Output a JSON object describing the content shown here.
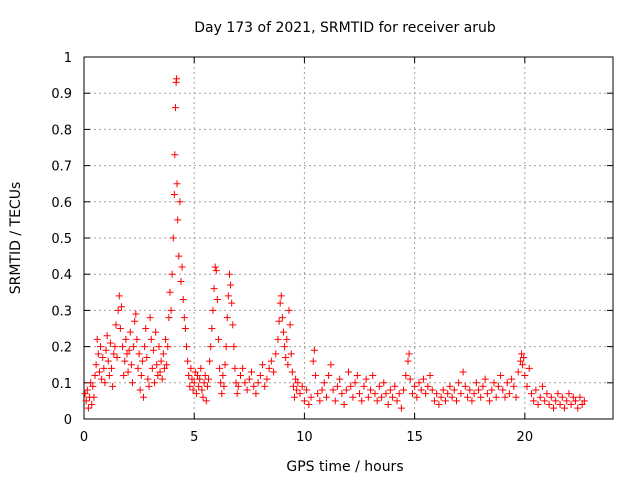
{
  "chart_data": {
    "type": "scatter",
    "title": "Day 173 of 2021, SRMTID for receiver arub",
    "xlabel": "GPS time / hours",
    "ylabel": "SRMTID / TECUs",
    "xlim": [
      0,
      24
    ],
    "ylim": [
      0,
      1
    ],
    "xticks": [
      0,
      5,
      10,
      15,
      20
    ],
    "xtick_labels": [
      "0",
      "5",
      "10",
      "15",
      "20"
    ],
    "yticks": [
      0,
      0.1,
      0.2,
      0.3,
      0.4,
      0.5,
      0.6,
      0.7,
      0.8,
      0.9,
      1
    ],
    "ytick_labels": [
      "0",
      "0.1",
      "0.2",
      "0.3",
      "0.4",
      "0.5",
      "0.6",
      "0.7",
      "0.8",
      "0.9",
      "1"
    ],
    "grid": true,
    "marker": "+",
    "color": "#ff0000",
    "series": [
      {
        "name": "SRMTID",
        "points": [
          [
            0.05,
            0.07
          ],
          [
            0.1,
            0.05
          ],
          [
            0.15,
            0.08
          ],
          [
            0.2,
            0.03
          ],
          [
            0.25,
            0.06
          ],
          [
            0.3,
            0.1
          ],
          [
            0.35,
            0.04
          ],
          [
            0.4,
            0.09
          ],
          [
            0.45,
            0.06
          ],
          [
            0.5,
            0.12
          ],
          [
            0.55,
            0.15
          ],
          [
            0.6,
            0.22
          ],
          [
            0.65,
            0.18
          ],
          [
            0.7,
            0.13
          ],
          [
            0.75,
            0.2
          ],
          [
            0.8,
            0.11
          ],
          [
            0.85,
            0.17
          ],
          [
            0.9,
            0.14
          ],
          [
            0.95,
            0.1
          ],
          [
            1.0,
            0.19
          ],
          [
            1.05,
            0.23
          ],
          [
            1.1,
            0.16
          ],
          [
            1.15,
            0.12
          ],
          [
            1.2,
            0.21
          ],
          [
            1.25,
            0.14
          ],
          [
            1.3,
            0.09
          ],
          [
            1.35,
            0.18
          ],
          [
            1.4,
            0.2
          ],
          [
            1.45,
            0.26
          ],
          [
            1.5,
            0.17
          ],
          [
            1.55,
            0.3
          ],
          [
            1.6,
            0.34
          ],
          [
            1.65,
            0.25
          ],
          [
            1.7,
            0.31
          ],
          [
            1.75,
            0.2
          ],
          [
            1.8,
            0.12
          ],
          [
            1.85,
            0.16
          ],
          [
            1.9,
            0.22
          ],
          [
            1.95,
            0.18
          ],
          [
            2.0,
            0.13
          ],
          [
            2.05,
            0.19
          ],
          [
            2.1,
            0.24
          ],
          [
            2.15,
            0.15
          ],
          [
            2.2,
            0.1
          ],
          [
            2.25,
            0.2
          ],
          [
            2.3,
            0.27
          ],
          [
            2.35,
            0.29
          ],
          [
            2.4,
            0.22
          ],
          [
            2.45,
            0.14
          ],
          [
            2.5,
            0.18
          ],
          [
            2.55,
            0.08
          ],
          [
            2.6,
            0.12
          ],
          [
            2.65,
            0.16
          ],
          [
            2.7,
            0.06
          ],
          [
            2.75,
            0.2
          ],
          [
            2.8,
            0.25
          ],
          [
            2.85,
            0.17
          ],
          [
            2.9,
            0.11
          ],
          [
            2.95,
            0.09
          ],
          [
            3.0,
            0.28
          ],
          [
            3.05,
            0.22
          ],
          [
            3.1,
            0.14
          ],
          [
            3.15,
            0.19
          ],
          [
            3.2,
            0.1
          ],
          [
            3.25,
            0.24
          ],
          [
            3.3,
            0.15
          ],
          [
            3.35,
            0.12
          ],
          [
            3.4,
            0.2
          ],
          [
            3.45,
            0.13
          ],
          [
            3.5,
            0.16
          ],
          [
            3.55,
            0.11
          ],
          [
            3.6,
            0.18
          ],
          [
            3.65,
            0.14
          ],
          [
            3.7,
            0.22
          ],
          [
            3.75,
            0.15
          ],
          [
            3.8,
            0.2
          ],
          [
            3.85,
            0.28
          ],
          [
            3.9,
            0.35
          ],
          [
            3.95,
            0.3
          ],
          [
            4.0,
            0.4
          ],
          [
            4.05,
            0.5
          ],
          [
            4.1,
            0.62
          ],
          [
            4.12,
            0.73
          ],
          [
            4.15,
            0.86
          ],
          [
            4.18,
            0.93
          ],
          [
            4.2,
            0.94
          ],
          [
            4.22,
            0.65
          ],
          [
            4.25,
            0.55
          ],
          [
            4.3,
            0.45
          ],
          [
            4.35,
            0.6
          ],
          [
            4.4,
            0.38
          ],
          [
            4.45,
            0.42
          ],
          [
            4.5,
            0.33
          ],
          [
            4.55,
            0.28
          ],
          [
            4.6,
            0.25
          ],
          [
            4.65,
            0.2
          ],
          [
            4.7,
            0.16
          ],
          [
            4.75,
            0.12
          ],
          [
            4.8,
            0.09
          ],
          [
            4.85,
            0.14
          ],
          [
            4.9,
            0.11
          ],
          [
            4.95,
            0.08
          ],
          [
            5.0,
            0.1
          ],
          [
            5.05,
            0.13
          ],
          [
            5.1,
            0.07
          ],
          [
            5.15,
            0.12
          ],
          [
            5.2,
            0.09
          ],
          [
            5.25,
            0.11
          ],
          [
            5.3,
            0.14
          ],
          [
            5.35,
            0.08
          ],
          [
            5.4,
            0.06
          ],
          [
            5.45,
            0.1
          ],
          [
            5.5,
            0.12
          ],
          [
            5.55,
            0.05
          ],
          [
            5.6,
            0.09
          ],
          [
            5.65,
            0.11
          ],
          [
            5.7,
            0.16
          ],
          [
            5.75,
            0.2
          ],
          [
            5.8,
            0.25
          ],
          [
            5.85,
            0.3
          ],
          [
            5.9,
            0.36
          ],
          [
            5.95,
            0.42
          ],
          [
            6.0,
            0.41
          ],
          [
            6.05,
            0.33
          ],
          [
            6.1,
            0.22
          ],
          [
            6.15,
            0.14
          ],
          [
            6.2,
            0.1
          ],
          [
            6.25,
            0.07
          ],
          [
            6.3,
            0.12
          ],
          [
            6.35,
            0.09
          ],
          [
            6.4,
            0.15
          ],
          [
            6.45,
            0.2
          ],
          [
            6.5,
            0.28
          ],
          [
            6.55,
            0.34
          ],
          [
            6.6,
            0.4
          ],
          [
            6.65,
            0.37
          ],
          [
            6.7,
            0.32
          ],
          [
            6.75,
            0.26
          ],
          [
            6.8,
            0.2
          ],
          [
            6.85,
            0.14
          ],
          [
            6.9,
            0.1
          ],
          [
            6.95,
            0.07
          ],
          [
            7.0,
            0.09
          ],
          [
            7.1,
            0.12
          ],
          [
            7.2,
            0.14
          ],
          [
            7.3,
            0.1
          ],
          [
            7.4,
            0.08
          ],
          [
            7.5,
            0.11
          ],
          [
            7.6,
            0.13
          ],
          [
            7.7,
            0.09
          ],
          [
            7.8,
            0.07
          ],
          [
            7.9,
            0.1
          ],
          [
            8.0,
            0.12
          ],
          [
            8.1,
            0.15
          ],
          [
            8.2,
            0.09
          ],
          [
            8.3,
            0.11
          ],
          [
            8.4,
            0.14
          ],
          [
            8.5,
            0.16
          ],
          [
            8.6,
            0.13
          ],
          [
            8.7,
            0.18
          ],
          [
            8.8,
            0.22
          ],
          [
            8.85,
            0.27
          ],
          [
            8.9,
            0.32
          ],
          [
            8.95,
            0.34
          ],
          [
            9.0,
            0.28
          ],
          [
            9.05,
            0.24
          ],
          [
            9.1,
            0.2
          ],
          [
            9.15,
            0.17
          ],
          [
            9.2,
            0.22
          ],
          [
            9.25,
            0.15
          ],
          [
            9.3,
            0.3
          ],
          [
            9.35,
            0.26
          ],
          [
            9.4,
            0.18
          ],
          [
            9.45,
            0.13
          ],
          [
            9.5,
            0.09
          ],
          [
            9.55,
            0.06
          ],
          [
            9.6,
            0.11
          ],
          [
            9.65,
            0.08
          ],
          [
            9.7,
            0.1
          ],
          [
            9.8,
            0.07
          ],
          [
            9.9,
            0.09
          ],
          [
            10.0,
            0.05
          ],
          [
            10.1,
            0.08
          ],
          [
            10.2,
            0.04
          ],
          [
            10.3,
            0.06
          ],
          [
            10.4,
            0.16
          ],
          [
            10.45,
            0.19
          ],
          [
            10.5,
            0.12
          ],
          [
            10.6,
            0.07
          ],
          [
            10.7,
            0.05
          ],
          [
            10.8,
            0.08
          ],
          [
            10.9,
            0.1
          ],
          [
            11.0,
            0.06
          ],
          [
            11.1,
            0.12
          ],
          [
            11.2,
            0.15
          ],
          [
            11.3,
            0.08
          ],
          [
            11.4,
            0.05
          ],
          [
            11.5,
            0.09
          ],
          [
            11.6,
            0.11
          ],
          [
            11.7,
            0.07
          ],
          [
            11.8,
            0.04
          ],
          [
            11.9,
            0.08
          ],
          [
            12.0,
            0.13
          ],
          [
            12.1,
            0.09
          ],
          [
            12.2,
            0.06
          ],
          [
            12.3,
            0.1
          ],
          [
            12.4,
            0.12
          ],
          [
            12.5,
            0.07
          ],
          [
            12.6,
            0.05
          ],
          [
            12.7,
            0.09
          ],
          [
            12.8,
            0.11
          ],
          [
            12.9,
            0.06
          ],
          [
            13.0,
            0.08
          ],
          [
            13.1,
            0.12
          ],
          [
            13.2,
            0.07
          ],
          [
            13.3,
            0.05
          ],
          [
            13.4,
            0.09
          ],
          [
            13.5,
            0.06
          ],
          [
            13.6,
            0.1
          ],
          [
            13.7,
            0.07
          ],
          [
            13.8,
            0.04
          ],
          [
            13.9,
            0.08
          ],
          [
            14.0,
            0.06
          ],
          [
            14.1,
            0.09
          ],
          [
            14.2,
            0.05
          ],
          [
            14.3,
            0.07
          ],
          [
            14.4,
            0.03
          ],
          [
            14.5,
            0.08
          ],
          [
            14.6,
            0.12
          ],
          [
            14.7,
            0.16
          ],
          [
            14.75,
            0.18
          ],
          [
            14.8,
            0.11
          ],
          [
            14.9,
            0.07
          ],
          [
            15.0,
            0.09
          ],
          [
            15.1,
            0.06
          ],
          [
            15.2,
            0.1
          ],
          [
            15.3,
            0.08
          ],
          [
            15.4,
            0.11
          ],
          [
            15.5,
            0.07
          ],
          [
            15.6,
            0.09
          ],
          [
            15.7,
            0.12
          ],
          [
            15.8,
            0.08
          ],
          [
            15.9,
            0.05
          ],
          [
            16.0,
            0.07
          ],
          [
            16.1,
            0.04
          ],
          [
            16.2,
            0.06
          ],
          [
            16.3,
            0.08
          ],
          [
            16.4,
            0.05
          ],
          [
            16.5,
            0.07
          ],
          [
            16.6,
            0.09
          ],
          [
            16.7,
            0.06
          ],
          [
            16.8,
            0.08
          ],
          [
            16.9,
            0.05
          ],
          [
            17.0,
            0.1
          ],
          [
            17.1,
            0.07
          ],
          [
            17.2,
            0.13
          ],
          [
            17.3,
            0.09
          ],
          [
            17.4,
            0.06
          ],
          [
            17.5,
            0.08
          ],
          [
            17.6,
            0.05
          ],
          [
            17.7,
            0.07
          ],
          [
            17.8,
            0.1
          ],
          [
            17.9,
            0.08
          ],
          [
            18.0,
            0.06
          ],
          [
            18.1,
            0.09
          ],
          [
            18.2,
            0.11
          ],
          [
            18.3,
            0.07
          ],
          [
            18.4,
            0.05
          ],
          [
            18.5,
            0.08
          ],
          [
            18.6,
            0.1
          ],
          [
            18.7,
            0.06
          ],
          [
            18.8,
            0.09
          ],
          [
            18.9,
            0.12
          ],
          [
            19.0,
            0.08
          ],
          [
            19.1,
            0.06
          ],
          [
            19.2,
            0.1
          ],
          [
            19.3,
            0.07
          ],
          [
            19.4,
            0.11
          ],
          [
            19.5,
            0.09
          ],
          [
            19.6,
            0.06
          ],
          [
            19.7,
            0.13
          ],
          [
            19.8,
            0.16
          ],
          [
            19.85,
            0.18
          ],
          [
            19.9,
            0.15
          ],
          [
            19.95,
            0.17
          ],
          [
            20.0,
            0.12
          ],
          [
            20.1,
            0.09
          ],
          [
            20.2,
            0.14
          ],
          [
            20.3,
            0.07
          ],
          [
            20.4,
            0.05
          ],
          [
            20.5,
            0.08
          ],
          [
            20.6,
            0.04
          ],
          [
            20.7,
            0.06
          ],
          [
            20.8,
            0.09
          ],
          [
            20.9,
            0.05
          ],
          [
            21.0,
            0.07
          ],
          [
            21.1,
            0.04
          ],
          [
            21.2,
            0.06
          ],
          [
            21.3,
            0.03
          ],
          [
            21.4,
            0.05
          ],
          [
            21.5,
            0.07
          ],
          [
            21.6,
            0.04
          ],
          [
            21.7,
            0.06
          ],
          [
            21.8,
            0.03
          ],
          [
            21.9,
            0.05
          ],
          [
            22.0,
            0.07
          ],
          [
            22.1,
            0.04
          ],
          [
            22.2,
            0.06
          ],
          [
            22.3,
            0.05
          ],
          [
            22.4,
            0.03
          ],
          [
            22.5,
            0.06
          ],
          [
            22.6,
            0.04
          ],
          [
            22.7,
            0.05
          ]
        ]
      }
    ]
  }
}
